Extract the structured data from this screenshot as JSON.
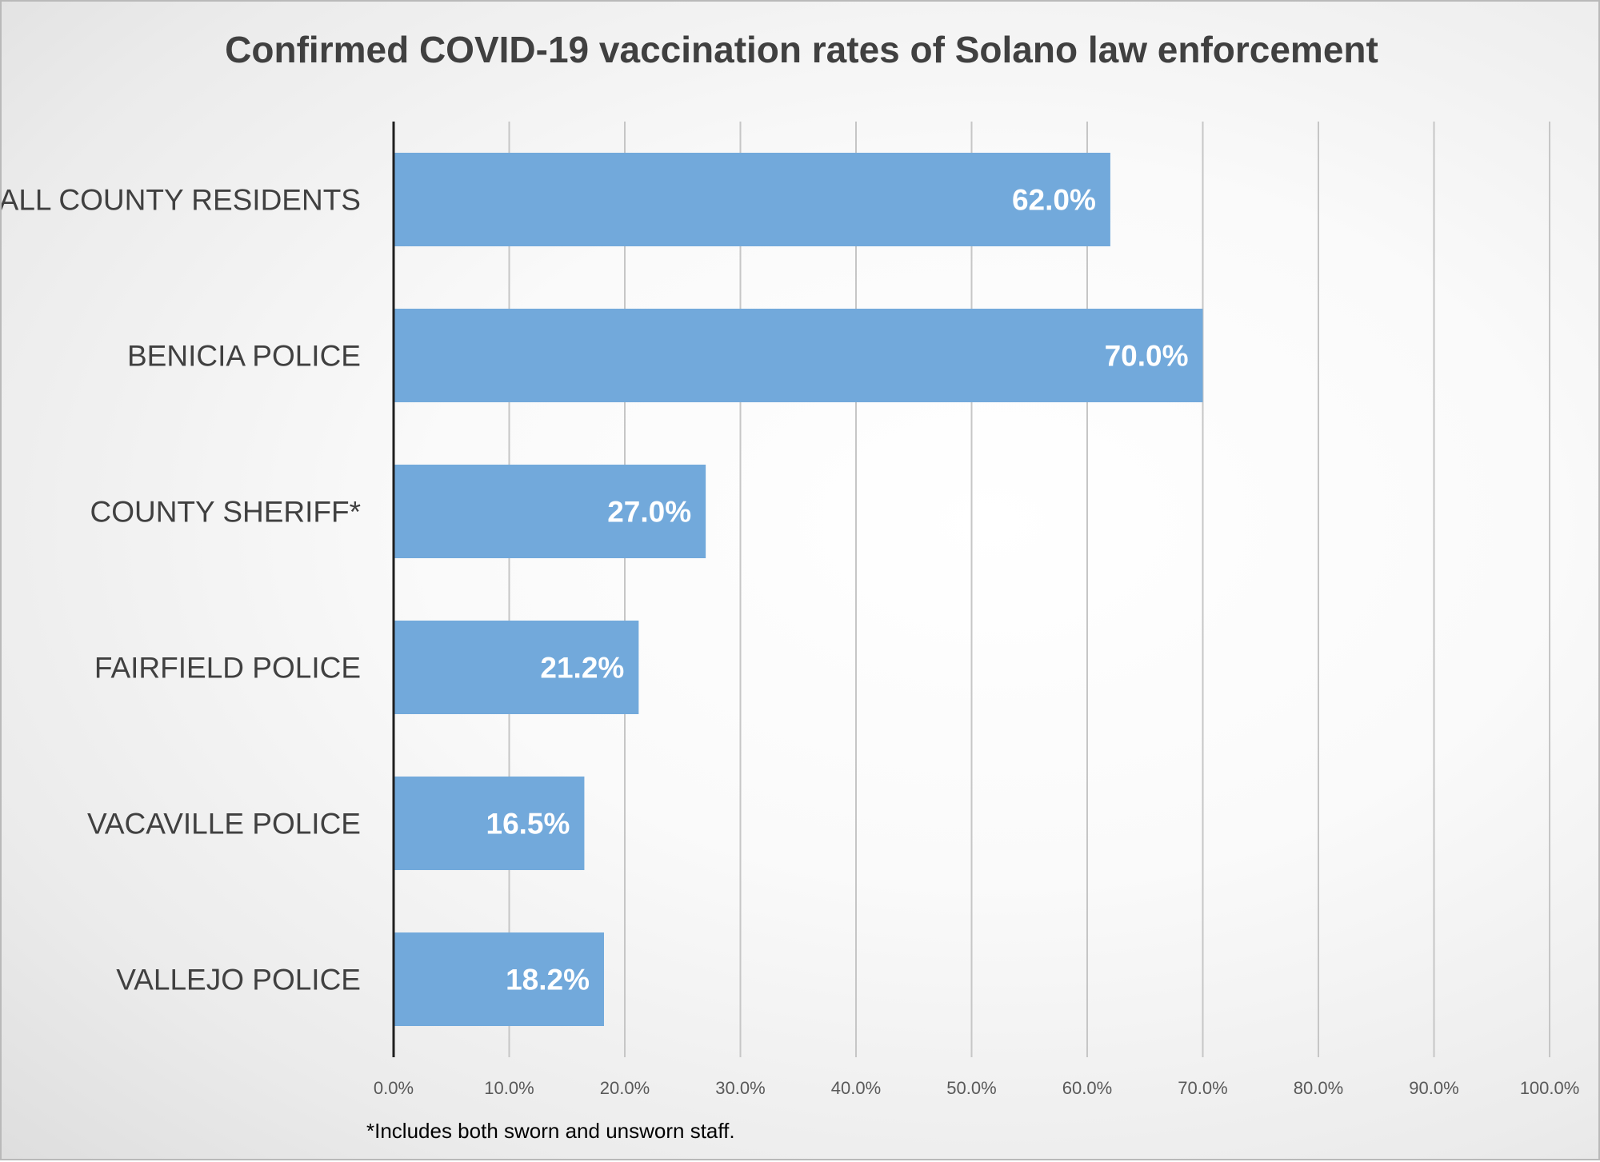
{
  "chart_data": {
    "type": "bar",
    "orientation": "horizontal",
    "title": "Confirmed COVID-19 vaccination rates of Solano law enforcement",
    "categories": [
      "ALL COUNTY RESIDENTS",
      "BENICIA POLICE",
      "COUNTY SHERIFF*",
      "FAIRFIELD POLICE",
      "VACAVILLE POLICE",
      "VALLEJO POLICE"
    ],
    "values": [
      62.0,
      70.0,
      27.0,
      21.2,
      16.5,
      18.2
    ],
    "data_labels": [
      "62.0%",
      "70.0%",
      "27.0%",
      "21.2%",
      "16.5%",
      "18.2%"
    ],
    "xlim": [
      0,
      100
    ],
    "x_ticks": [
      0,
      10,
      20,
      30,
      40,
      50,
      60,
      70,
      80,
      90,
      100
    ],
    "x_tick_labels": [
      "0.0%",
      "10.0%",
      "20.0%",
      "30.0%",
      "40.0%",
      "50.0%",
      "60.0%",
      "70.0%",
      "80.0%",
      "90.0%",
      "100.0%"
    ],
    "xlabel": "",
    "ylabel": "",
    "grid": "vertical",
    "legend": "none",
    "bar_color": "#72a9db",
    "footnote": "*Includes both sworn and unsworn staff."
  }
}
